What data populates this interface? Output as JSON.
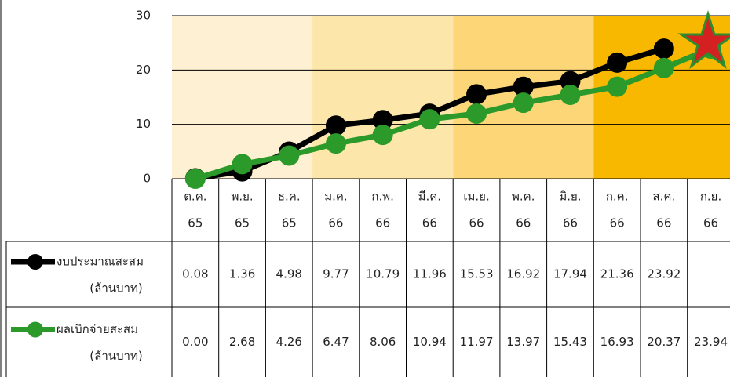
{
  "chart_data": {
    "type": "line",
    "categories": [
      "ต.ค.",
      "พ.ย.",
      "ธ.ค.",
      "ม.ค.",
      "ก.พ.",
      "มี.ค.",
      "เม.ย.",
      "พ.ค.",
      "มิ.ย.",
      "ก.ค.",
      "ส.ค.",
      "ก.ย."
    ],
    "years": [
      "65",
      "65",
      "65",
      "66",
      "66",
      "66",
      "66",
      "66",
      "66",
      "66",
      "66",
      "66"
    ],
    "series": [
      {
        "name": "งบประมาณสะสม",
        "color": "#000000",
        "values": [
          0.08,
          1.36,
          4.98,
          9.77,
          10.79,
          11.96,
          15.53,
          16.92,
          17.94,
          21.36,
          23.92,
          null
        ],
        "value_labels": [
          "0.08",
          "1.36",
          "4.98",
          "9.77",
          "10.79",
          "11.96",
          "15.53",
          "16.92",
          "17.94",
          "21.36",
          "23.92",
          null
        ]
      },
      {
        "name": "ผลเบิกจ่ายสะสม",
        "color": "#2b9a2b",
        "values": [
          0,
          2.68,
          4.26,
          6.47,
          8.06,
          10.94,
          11.97,
          13.97,
          15.43,
          16.93,
          20.37,
          23.94
        ],
        "value_labels": [
          "0.00",
          "2.68",
          "4.26",
          "6.47",
          "8.06",
          "10.94",
          "11.97",
          "13.97",
          "15.43",
          "16.93",
          "20.37",
          "23.94"
        ]
      }
    ],
    "legend_unit": "(ล้านบาท)",
    "quarter_colors": [
      "#fdf0d3",
      "#fde6a9",
      "#fdd678",
      "#f9b800"
    ],
    "ylim": [
      0,
      30
    ],
    "yticks": [
      0,
      10,
      20,
      30
    ],
    "grid": true
  }
}
